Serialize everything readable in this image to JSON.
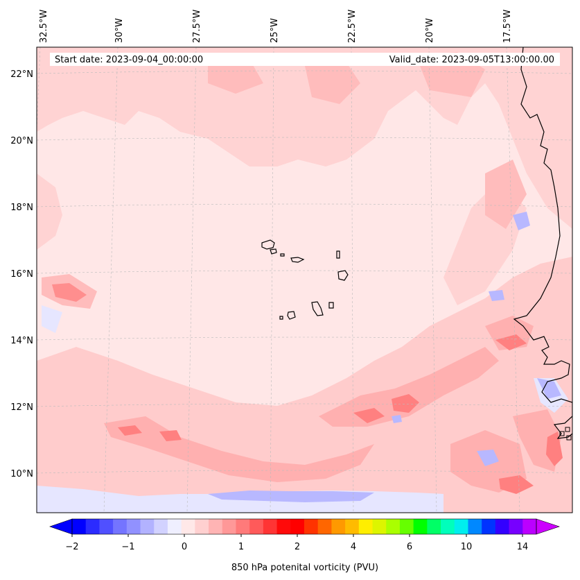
{
  "header": {
    "start_date": "Start date: 2023-09-04_00:00:00",
    "valid_date": "Valid_date: 2023-09-05T13:00:00.00"
  },
  "longitude_labels": [
    "32.5°W",
    "30°W",
    "27.5°W",
    "25°W",
    "22.5°W",
    "20°W",
    "17.5°W"
  ],
  "latitude_labels": [
    "22°N",
    "20°N",
    "18°N",
    "16°N",
    "14°N",
    "12°N",
    "10°N"
  ],
  "colorbar": {
    "label": "850 hPa potenital vorticity (PVU)",
    "tick_labels": [
      "−2",
      "−1",
      "0",
      "1",
      "2",
      "4",
      "6",
      "10",
      "14"
    ],
    "colors": [
      "#0000ff",
      "#2b2bff",
      "#5050ff",
      "#7474ff",
      "#9191ff",
      "#b2b2ff",
      "#d2d2ff",
      "#efefff",
      "#ffe8e8",
      "#ffd0d0",
      "#ffb4b4",
      "#ff9898",
      "#ff7a7a",
      "#ff5a5a",
      "#ff3434",
      "#ff0a0a",
      "#ff0000",
      "#ff3300",
      "#ff6600",
      "#ff9900",
      "#ffbb00",
      "#ffee00",
      "#ddf500",
      "#aaff00",
      "#66ff00",
      "#00ff00",
      "#00ff66",
      "#00ffbb",
      "#00eeee",
      "#0088ff",
      "#0033ff",
      "#3300ff",
      "#7700ff",
      "#bb00ff"
    ],
    "extend_low_color": "#0000ff",
    "extend_high_color": "#cc00ff"
  },
  "map": {
    "background_color": "#ffe7e7",
    "coastline_color": "#000000"
  }
}
